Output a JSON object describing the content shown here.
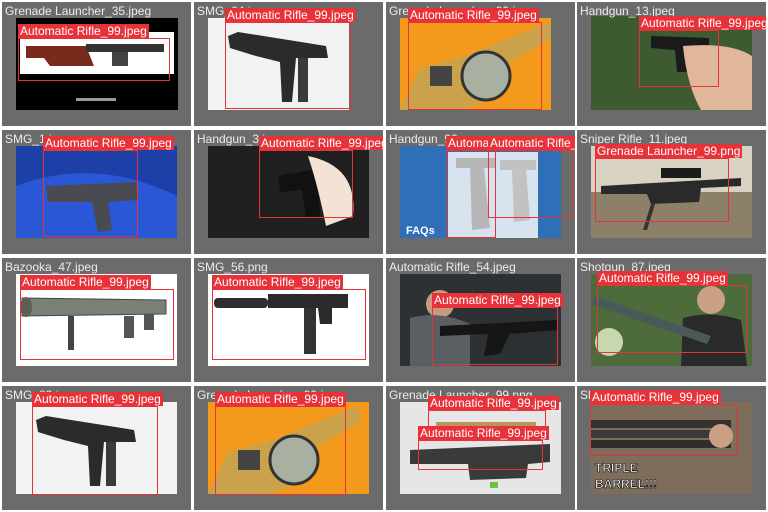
{
  "tiles": [
    {
      "filename": "Grenade Launcher_35.jpeg",
      "thumb": "launcher-side-icon",
      "detections": [
        "Automatic Rifle_99.jpeg"
      ]
    },
    {
      "filename": "SMG_64.jpeg",
      "thumb": "uzi-icon",
      "detections": [
        "Automatic Rifle_99.jpeg"
      ]
    },
    {
      "filename": "Grenade Launcher_99.jpeg",
      "thumb": "drum-launcher-icon",
      "detections": [
        "Automatic Rifle_99.jpeg"
      ]
    },
    {
      "filename": "Handgun_13.jpeg",
      "thumb": "hand-pistol-icon",
      "detections": [
        "Automatic Rifle_99.jpeg"
      ]
    },
    {
      "filename": "SMG_1.jpeg",
      "thumb": "smg-blue-icon",
      "detections": [
        "Automatic Rifle_99.jpeg"
      ]
    },
    {
      "filename": "Handgun_3.jpeg",
      "thumb": "pistol-grip-icon",
      "detections": [
        "Automatic Rifle_99.jpeg"
      ]
    },
    {
      "filename": "Handgun_92.png",
      "thumb": "pistols-faq-icon",
      "detections": [
        "Automatic Rifle_99.jpeg",
        "Automatic Rifle_99.jpeg"
      ]
    },
    {
      "filename": "Sniper Rifle_11.jpeg",
      "thumb": "sniper-icon",
      "detections": [
        "Grenade Launcher_99.png"
      ]
    },
    {
      "filename": "Bazooka_47.jpeg",
      "thumb": "bazooka-icon",
      "detections": [
        "Automatic Rifle_99.jpeg"
      ]
    },
    {
      "filename": "SMG_56.png",
      "thumb": "suppressed-smg-icon",
      "detections": [
        "Automatic Rifle_99.jpeg"
      ]
    },
    {
      "filename": "Automatic Rifle_54.jpeg",
      "thumb": "rifle-range-icon",
      "detections": [
        "Automatic Rifle_99.jpeg"
      ]
    },
    {
      "filename": "Shotgun_87.jpeg",
      "thumb": "man-shotgun-icon",
      "detections": [
        "Automatic Rifle_99.jpeg"
      ]
    },
    {
      "filename": "SMG_83.jpeg",
      "thumb": "uzi-icon",
      "detections": [
        "Automatic Rifle_99.jpeg"
      ]
    },
    {
      "filename": "Grenade Launcher_99.jpeg",
      "thumb": "drum-launcher-icon",
      "detections": [
        "Automatic Rifle_99.jpeg"
      ]
    },
    {
      "filename": "Grenade Launcher_99.png",
      "thumb": "grenade-launcher-icon",
      "detections": [
        "Automatic Rifle_99.jpeg",
        "Automatic Rifle_99.jpeg"
      ]
    },
    {
      "filename": "Shotgun_62.jpeg",
      "thumb": "triple-barrel-icon",
      "detections": [
        "Automatic Rifle_99.jpeg"
      ]
    }
  ],
  "overlay_text": {
    "faq": "FAQs",
    "triple_barrel": "TRIPLE BARREL!!!"
  },
  "colors": {
    "tile_bg": "#6b6b6b",
    "filename_text": "#ececec",
    "detection_box": "#e8323a",
    "detection_label_text": "#ffffff"
  }
}
